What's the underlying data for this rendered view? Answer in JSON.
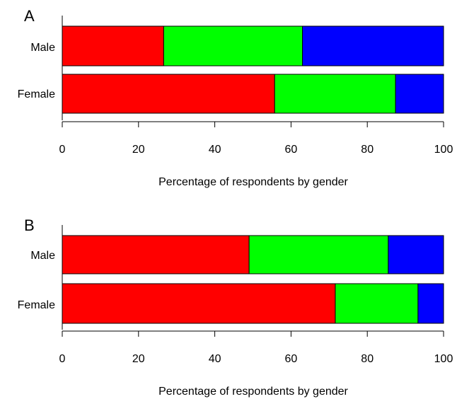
{
  "chart_data": [
    {
      "type": "bar",
      "orientation": "horizontal",
      "stacked": true,
      "panel_label": "A",
      "categories": [
        "Male",
        "Female"
      ],
      "series": [
        {
          "color": "#ff0000",
          "values": [
            26.6,
            55.7
          ]
        },
        {
          "color": "#00ff00",
          "values": [
            36.4,
            31.7
          ]
        },
        {
          "color": "#0000ff",
          "values": [
            37.0,
            12.6
          ]
        }
      ],
      "xlabel": "Percentage of respondents by gender",
      "xlim": [
        0,
        100
      ],
      "xticks": [
        0,
        20,
        40,
        60,
        80,
        100
      ],
      "grid": false,
      "legend": "none"
    },
    {
      "type": "bar",
      "orientation": "horizontal",
      "stacked": true,
      "panel_label": "B",
      "categories": [
        "Male",
        "Female"
      ],
      "series": [
        {
          "color": "#ff0000",
          "values": [
            49.0,
            71.6
          ]
        },
        {
          "color": "#00ff00",
          "values": [
            36.5,
            21.7
          ]
        },
        {
          "color": "#0000ff",
          "values": [
            14.5,
            6.7
          ]
        }
      ],
      "xlabel": "Percentage of respondents by gender",
      "xlim": [
        0,
        100
      ],
      "xticks": [
        0,
        20,
        40,
        60,
        80,
        100
      ],
      "grid": false,
      "legend": "none"
    }
  ]
}
